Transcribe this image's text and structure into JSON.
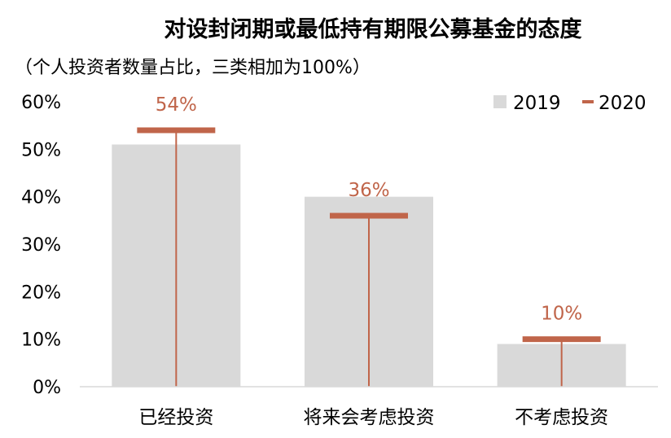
{
  "chart_data": {
    "type": "bar",
    "title": "对设封闭期或最低持有期限公募基金的态度",
    "subtitle": "（个人投资者数量占比，三类相加为100%）",
    "categories": [
      "已经投资",
      "将来会考虑投资",
      "不考虑投资"
    ],
    "series": [
      {
        "name": "2019",
        "values": [
          51,
          40,
          9
        ],
        "style": "bar",
        "color": "#d9d9d9"
      },
      {
        "name": "2020",
        "values": [
          54,
          36,
          10
        ],
        "style": "marker",
        "color": "#c0654a"
      }
    ],
    "data_labels": [
      "54%",
      "36%",
      "10%"
    ],
    "yticks": [
      "0%",
      "10%",
      "20%",
      "30%",
      "40%",
      "50%",
      "60%"
    ],
    "ylim": [
      0,
      60
    ],
    "legend_position": "top-right",
    "grid": false
  }
}
